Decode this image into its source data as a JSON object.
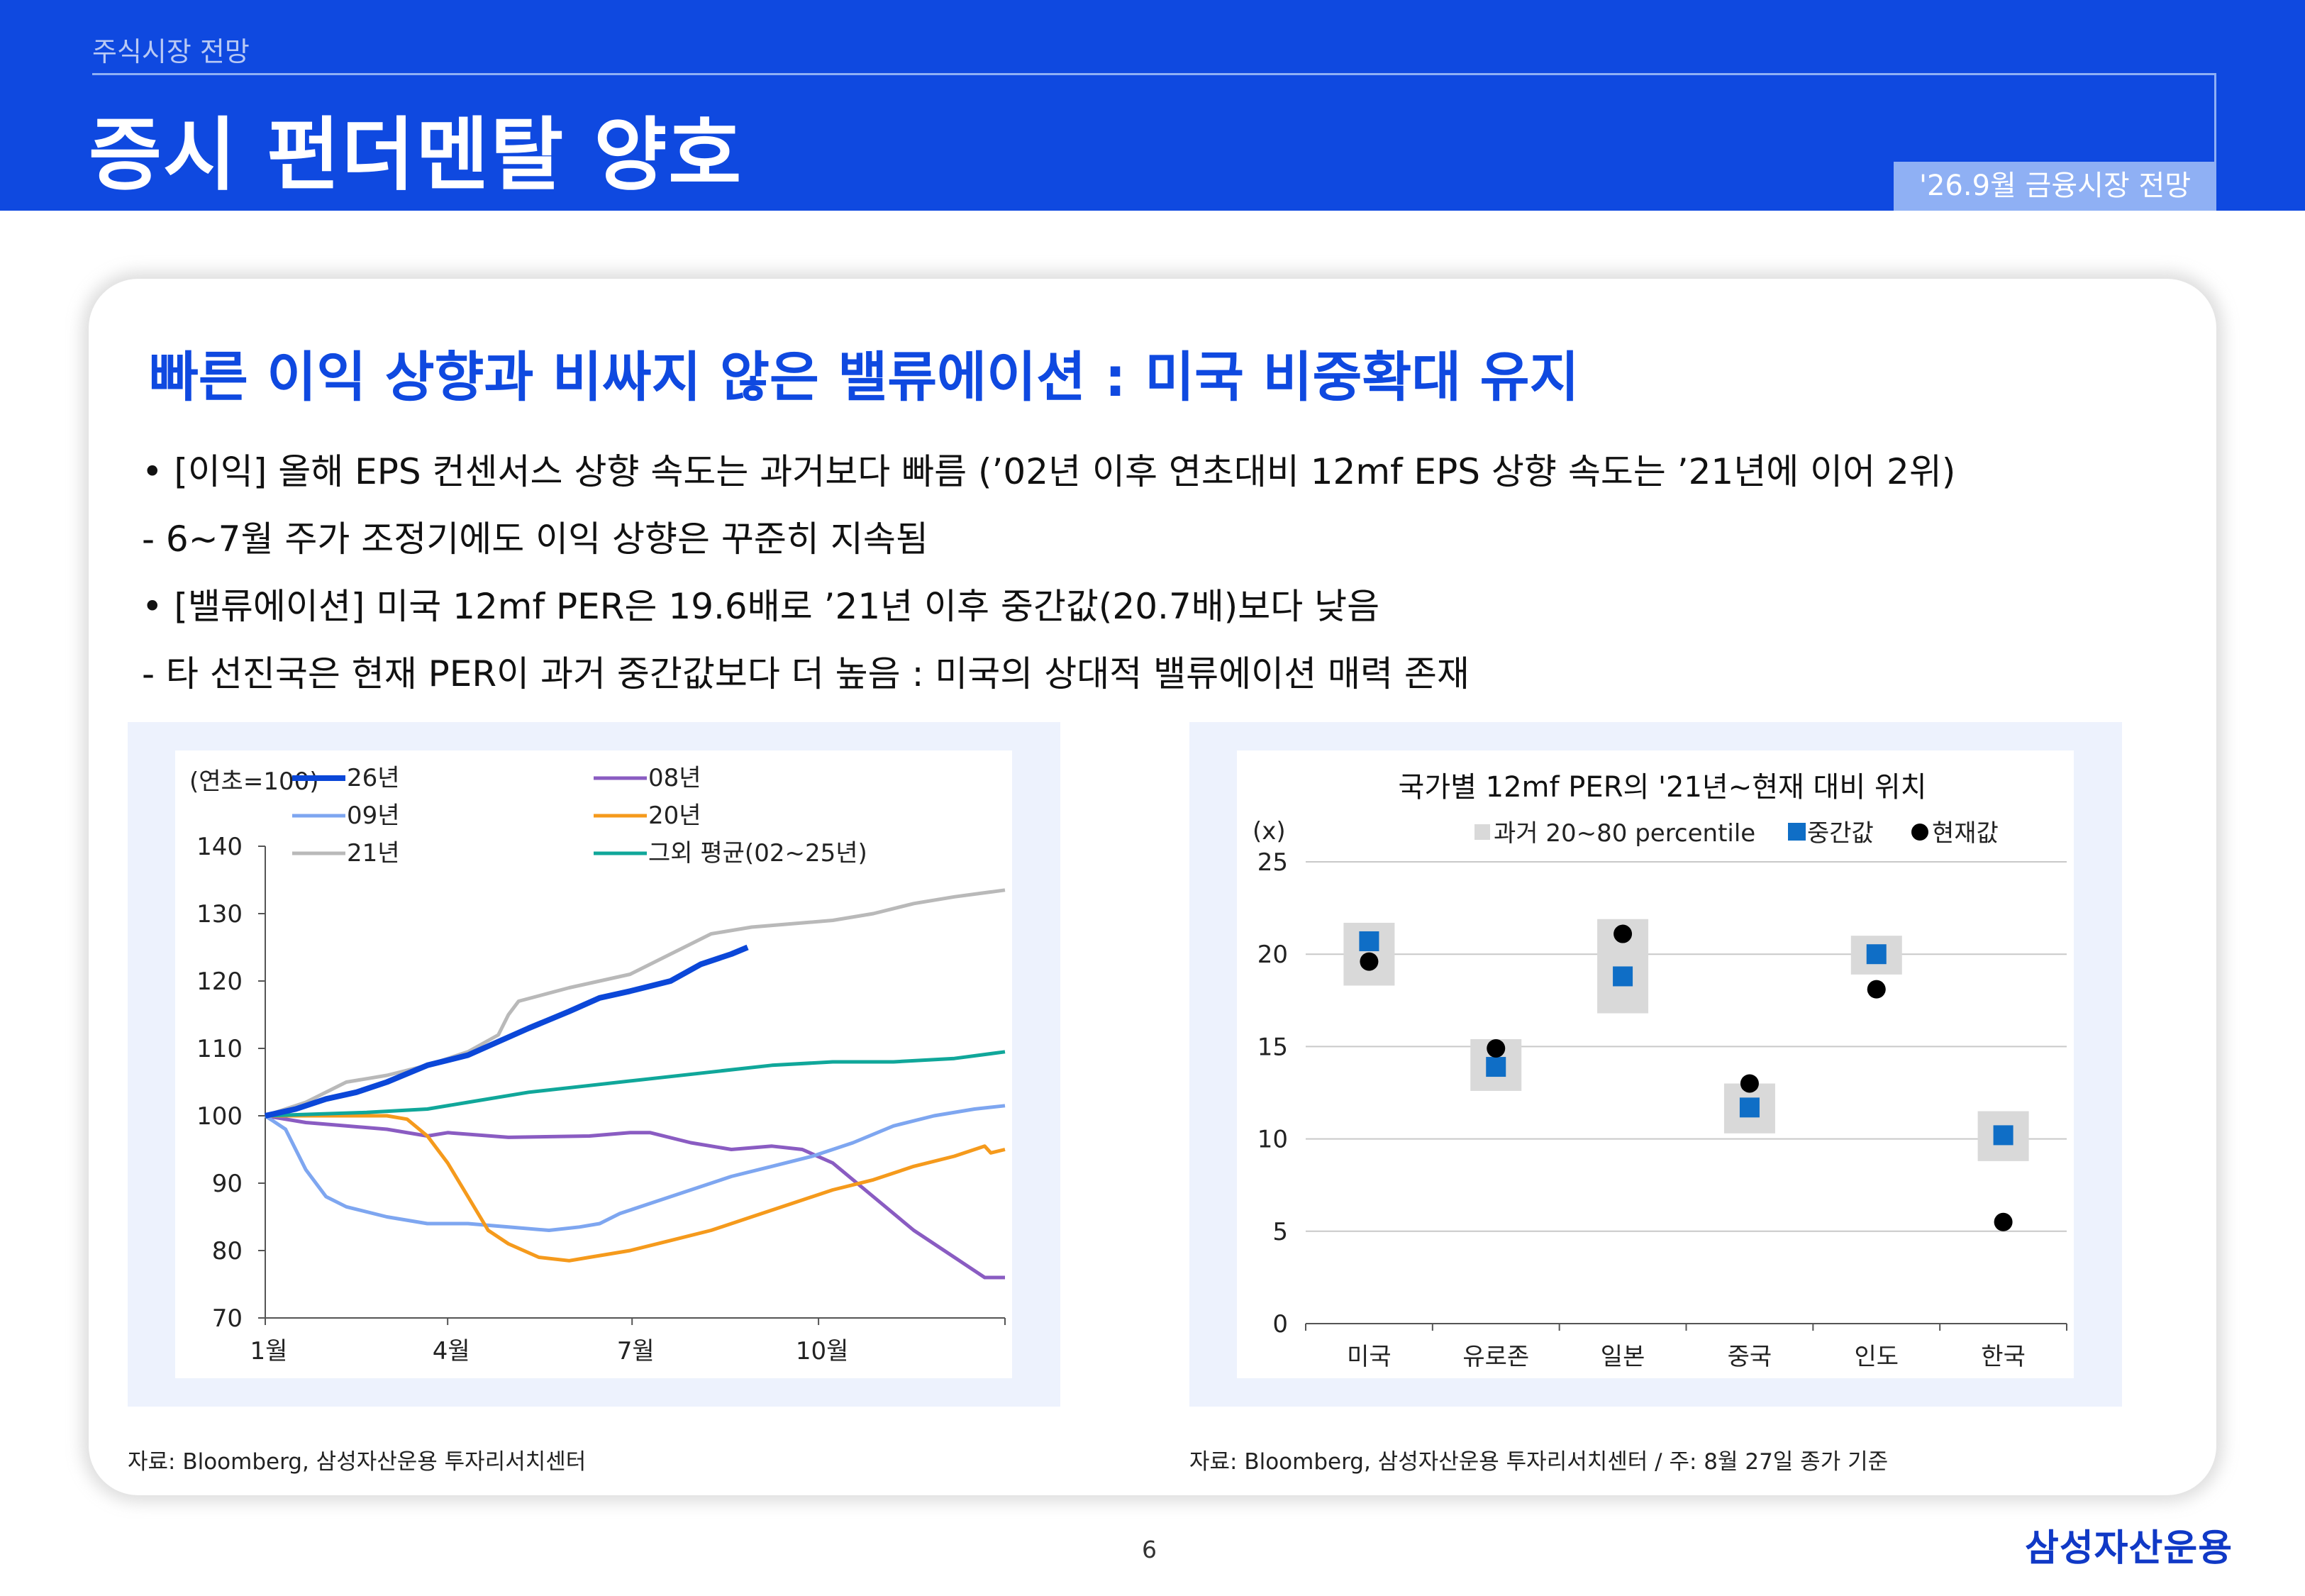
{
  "header": {
    "section": "주식시장 전망",
    "title": "증시 펀더멘탈 양호",
    "report": "'26.9월 금융시장 전망"
  },
  "headline": "빠른 이익 상향과 비싸지 않은 밸류에이션 : 미국 비중확대 유지",
  "bullets": [
    "• [이익] 올해 EPS 컨센서스 상향 속도는 과거보다 빠름 (’02년 이후 연초대비 12mf EPS 상향 속도는 ’21년에 이어 2위)",
    " - 6~7월 주가 조정기에도 이익 상향은 꾸준히 지속됨",
    "• [밸류에이션] 미국 12mf PER은 19.6배로 ’21년 이후 중간값(20.7배)보다 낮음",
    " - 타 선진국은 현재 PER이 과거 중간값보다 더 높음 : 미국의 상대적 밸류에이션 매력 존재"
  ],
  "sources": {
    "left": "자료: Bloomberg, 삼성자산운용 투자리서치센터",
    "right": "자료: Bloomberg, 삼성자산운용 투자리서치센터 / 주: 8월 27일 종가 기준"
  },
  "footer": {
    "page": "6",
    "logo": "삼성자산운용"
  },
  "chart_data": [
    {
      "type": "line",
      "unit_label": "(연초=100)",
      "ylim": [
        70,
        140
      ],
      "yticks": [
        70,
        80,
        90,
        100,
        110,
        120,
        130,
        140
      ],
      "xlim": [
        0,
        365
      ],
      "xticks": [
        {
          "x": 0,
          "label": "1월"
        },
        {
          "x": 90,
          "label": "4월"
        },
        {
          "x": 181,
          "label": "7월"
        },
        {
          "x": 273,
          "label": "10월"
        }
      ],
      "legend_position": "top",
      "series": [
        {
          "name": "26년",
          "color": "#0b47d8",
          "width": 8,
          "points": [
            [
              0,
              100
            ],
            [
              15,
              101
            ],
            [
              30,
              102.5
            ],
            [
              45,
              103.5
            ],
            [
              60,
              105
            ],
            [
              80,
              107.5
            ],
            [
              100,
              109
            ],
            [
              115,
              111
            ],
            [
              130,
              113
            ],
            [
              150,
              115.5
            ],
            [
              165,
              117.5
            ],
            [
              180,
              118.5
            ],
            [
              200,
              120
            ],
            [
              215,
              122.5
            ],
            [
              230,
              124
            ],
            [
              238,
              125
            ]
          ]
        },
        {
          "name": "08년",
          "color": "#8a5cc2",
          "width": 5,
          "points": [
            [
              0,
              100
            ],
            [
              20,
              99
            ],
            [
              40,
              98.5
            ],
            [
              60,
              98
            ],
            [
              80,
              97
            ],
            [
              90,
              97.5
            ],
            [
              120,
              96.8
            ],
            [
              160,
              97
            ],
            [
              180,
              97.5
            ],
            [
              190,
              97.5
            ],
            [
              210,
              96
            ],
            [
              230,
              95
            ],
            [
              250,
              95.5
            ],
            [
              265,
              95
            ],
            [
              280,
              93
            ],
            [
              300,
              88
            ],
            [
              320,
              83
            ],
            [
              340,
              79
            ],
            [
              355,
              76
            ],
            [
              365,
              76
            ]
          ]
        },
        {
          "name": "09년",
          "color": "#7ea6f0",
          "width": 5,
          "points": [
            [
              0,
              100
            ],
            [
              10,
              98
            ],
            [
              20,
              92
            ],
            [
              30,
              88
            ],
            [
              40,
              86.5
            ],
            [
              60,
              85
            ],
            [
              80,
              84
            ],
            [
              100,
              84
            ],
            [
              120,
              83.5
            ],
            [
              140,
              83
            ],
            [
              155,
              83.5
            ],
            [
              165,
              84
            ],
            [
              175,
              85.5
            ],
            [
              190,
              87
            ],
            [
              210,
              89
            ],
            [
              230,
              91
            ],
            [
              250,
              92.5
            ],
            [
              270,
              94
            ],
            [
              290,
              96
            ],
            [
              310,
              98.5
            ],
            [
              330,
              100
            ],
            [
              350,
              101
            ],
            [
              365,
              101.5
            ]
          ]
        },
        {
          "name": "20년",
          "color": "#f59a1c",
          "width": 5,
          "points": [
            [
              0,
              100
            ],
            [
              30,
              100
            ],
            [
              60,
              100
            ],
            [
              70,
              99.5
            ],
            [
              80,
              97
            ],
            [
              90,
              93
            ],
            [
              100,
              88
            ],
            [
              110,
              83
            ],
            [
              120,
              81
            ],
            [
              135,
              79
            ],
            [
              150,
              78.5
            ],
            [
              160,
              79
            ],
            [
              180,
              80
            ],
            [
              200,
              81.5
            ],
            [
              220,
              83
            ],
            [
              240,
              85
            ],
            [
              260,
              87
            ],
            [
              280,
              89
            ],
            [
              300,
              90.5
            ],
            [
              320,
              92.5
            ],
            [
              340,
              94
            ],
            [
              355,
              95.5
            ],
            [
              358,
              94.5
            ],
            [
              365,
              95
            ]
          ]
        },
        {
          "name": "21년",
          "color": "#b9b9b9",
          "width": 5,
          "points": [
            [
              0,
              100
            ],
            [
              20,
              102
            ],
            [
              40,
              105
            ],
            [
              60,
              106
            ],
            [
              80,
              107.5
            ],
            [
              100,
              109.5
            ],
            [
              115,
              112
            ],
            [
              120,
              115
            ],
            [
              125,
              117
            ],
            [
              150,
              119
            ],
            [
              180,
              121
            ],
            [
              200,
              124
            ],
            [
              220,
              127
            ],
            [
              240,
              128
            ],
            [
              260,
              128.5
            ],
            [
              280,
              129
            ],
            [
              300,
              130
            ],
            [
              320,
              131.5
            ],
            [
              340,
              132.5
            ],
            [
              365,
              133.5
            ]
          ]
        },
        {
          "name": "그외 평균(02~25년)",
          "color": "#10a79a",
          "width": 5,
          "points": [
            [
              0,
              100
            ],
            [
              50,
              100.5
            ],
            [
              80,
              101
            ],
            [
              100,
              102
            ],
            [
              130,
              103.5
            ],
            [
              160,
              104.5
            ],
            [
              190,
              105.5
            ],
            [
              220,
              106.5
            ],
            [
              250,
              107.5
            ],
            [
              280,
              108
            ],
            [
              310,
              108
            ],
            [
              340,
              108.5
            ],
            [
              365,
              109.5
            ]
          ]
        }
      ]
    },
    {
      "type": "scatter",
      "title": "국가별 12mf PER의 '21년~현재 대비 위치",
      "unit_label": "(x)",
      "ylim": [
        0,
        25
      ],
      "yticks": [
        0,
        5,
        10,
        15,
        20,
        25
      ],
      "categories": [
        "미국",
        "유로존",
        "일본",
        "중국",
        "인도",
        "한국"
      ],
      "legend_position": "top",
      "legend": [
        "과거 20~80 percentile",
        "중간값",
        "현재값"
      ],
      "range_20_80": [
        [
          18.3,
          21.7
        ],
        [
          12.6,
          15.4
        ],
        [
          16.8,
          21.9
        ],
        [
          10.3,
          13.0
        ],
        [
          18.9,
          21.0
        ],
        [
          8.8,
          11.5
        ]
      ],
      "median": [
        20.7,
        13.9,
        18.8,
        11.7,
        20.0,
        10.2
      ],
      "current": [
        19.6,
        14.9,
        21.1,
        13.0,
        18.1,
        5.5
      ],
      "colors": {
        "range": "#d9d9d9",
        "median": "#0f6ec6",
        "current": "#000000"
      }
    }
  ]
}
